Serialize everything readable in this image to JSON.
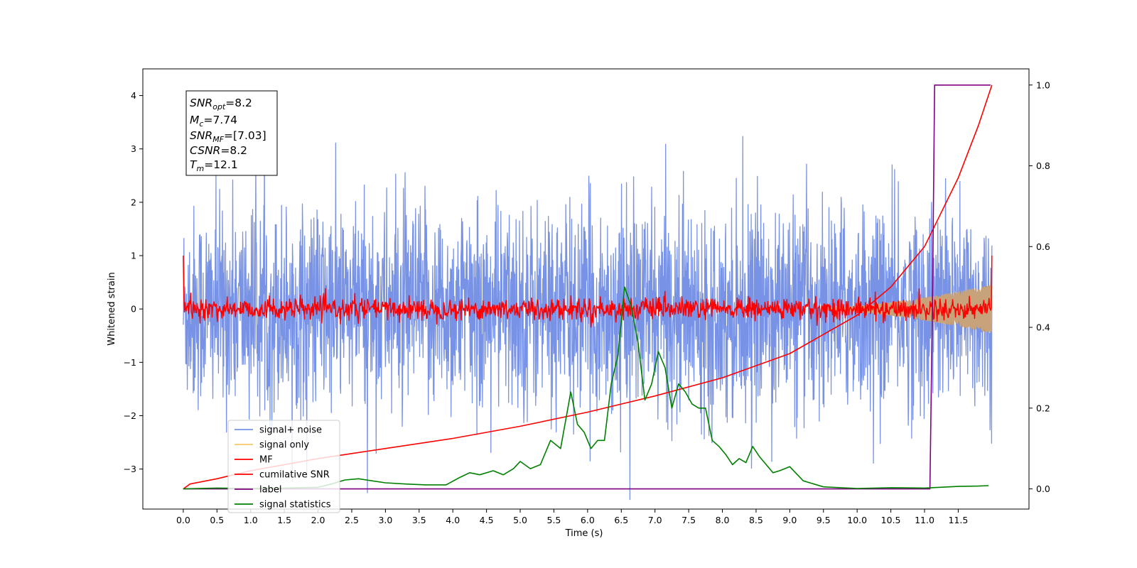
{
  "chart_data": {
    "type": "line",
    "xlabel": "Time (s)",
    "ylabel": "Whitened strain",
    "xlim": [
      -0.6,
      12.55
    ],
    "ylim": [
      -3.75,
      4.5
    ],
    "y2lim": [
      -0.05,
      1.04
    ],
    "xticks": [
      "0.0",
      "0.5",
      "1.0",
      "1.5",
      "2.0",
      "2.5",
      "3.0",
      "3.5",
      "4.0",
      "4.5",
      "5.0",
      "5.5",
      "6.0",
      "6.5",
      "7.0",
      "7.5",
      "8.0",
      "8.5",
      "9.0",
      "9.5",
      "10.0",
      "10.5",
      "11.0",
      "11.5"
    ],
    "yticks": [
      "4",
      "3",
      "2",
      "1",
      "0",
      "−1",
      "−2",
      "−3"
    ],
    "y2ticks": [
      "1.0",
      "0.8",
      "0.6",
      "0.4",
      "0.2",
      "0.0"
    ],
    "legend": {
      "position": "lower-left",
      "entries": [
        "signal+ noise",
        "signal only",
        "MF",
        "cumilative SNR",
        "label",
        "signal statistics"
      ]
    },
    "annotation": {
      "snr_opt": "8.2",
      "mc": "7.74",
      "snr_mf": "[7.03]",
      "csnr": "8.2",
      "tm": "12.1"
    },
    "series": [
      {
        "name": "signal+ noise",
        "color": "#7893e6",
        "axis": "left",
        "kind": "noise",
        "std": 0.95,
        "range": [
          0,
          12.0
        ]
      },
      {
        "name": "signal only",
        "color": "#c8a27a",
        "axis": "left",
        "kind": "chirp",
        "amp_start": 0.02,
        "amp_end": 0.45,
        "range": [
          9.5,
          12.0
        ]
      },
      {
        "name": "MF",
        "color": "#ff0000",
        "axis": "left",
        "kind": "noise",
        "std": 0.1,
        "range": [
          0,
          12.0
        ]
      },
      {
        "name": "cumilative SNR",
        "color": "#ff0000",
        "axis": "right",
        "x": [
          0,
          0.1,
          0.5,
          1,
          2,
          3,
          4,
          5,
          6,
          7,
          8,
          9,
          10,
          10.5,
          11,
          11.5,
          11.8,
          12.0
        ],
        "y": [
          0.0,
          0.012,
          0.025,
          0.045,
          0.075,
          0.1,
          0.125,
          0.155,
          0.19,
          0.23,
          0.275,
          0.335,
          0.43,
          0.5,
          0.6,
          0.77,
          0.9,
          1.0
        ]
      },
      {
        "name": "label",
        "color": "#800080",
        "axis": "right",
        "x": [
          0,
          11.08,
          11.12,
          11.15,
          11.98
        ],
        "y": [
          0,
          0,
          0.5,
          1,
          1
        ]
      },
      {
        "name": "signal statistics",
        "color": "#008000",
        "axis": "right",
        "x": [
          0,
          0.5,
          1.0,
          1.5,
          2.0,
          2.2,
          2.4,
          2.6,
          2.8,
          3.0,
          3.3,
          3.6,
          3.9,
          4.1,
          4.25,
          4.4,
          4.6,
          4.75,
          4.9,
          5.0,
          5.15,
          5.3,
          5.45,
          5.6,
          5.75,
          5.85,
          5.95,
          6.05,
          6.15,
          6.25,
          6.35,
          6.45,
          6.55,
          6.65,
          6.75,
          6.85,
          6.95,
          7.05,
          7.15,
          7.25,
          7.35,
          7.45,
          7.55,
          7.65,
          7.75,
          7.85,
          7.95,
          8.05,
          8.15,
          8.25,
          8.35,
          8.45,
          8.55,
          8.65,
          8.75,
          8.85,
          9.0,
          9.2,
          9.5,
          10.0,
          10.5,
          11.0,
          11.5,
          11.8,
          11.95
        ],
        "y": [
          0.0,
          0.002,
          0.001,
          0.002,
          0.004,
          0.012,
          0.022,
          0.025,
          0.02,
          0.015,
          0.012,
          0.01,
          0.01,
          0.028,
          0.04,
          0.035,
          0.045,
          0.035,
          0.05,
          0.068,
          0.05,
          0.06,
          0.12,
          0.1,
          0.24,
          0.16,
          0.14,
          0.1,
          0.12,
          0.12,
          0.26,
          0.33,
          0.5,
          0.45,
          0.36,
          0.22,
          0.26,
          0.34,
          0.3,
          0.2,
          0.26,
          0.24,
          0.21,
          0.2,
          0.2,
          0.12,
          0.105,
          0.085,
          0.06,
          0.075,
          0.065,
          0.105,
          0.08,
          0.06,
          0.04,
          0.045,
          0.055,
          0.02,
          0.005,
          0.001,
          0.003,
          0.002,
          0.006,
          0.007,
          0.008
        ]
      }
    ]
  }
}
